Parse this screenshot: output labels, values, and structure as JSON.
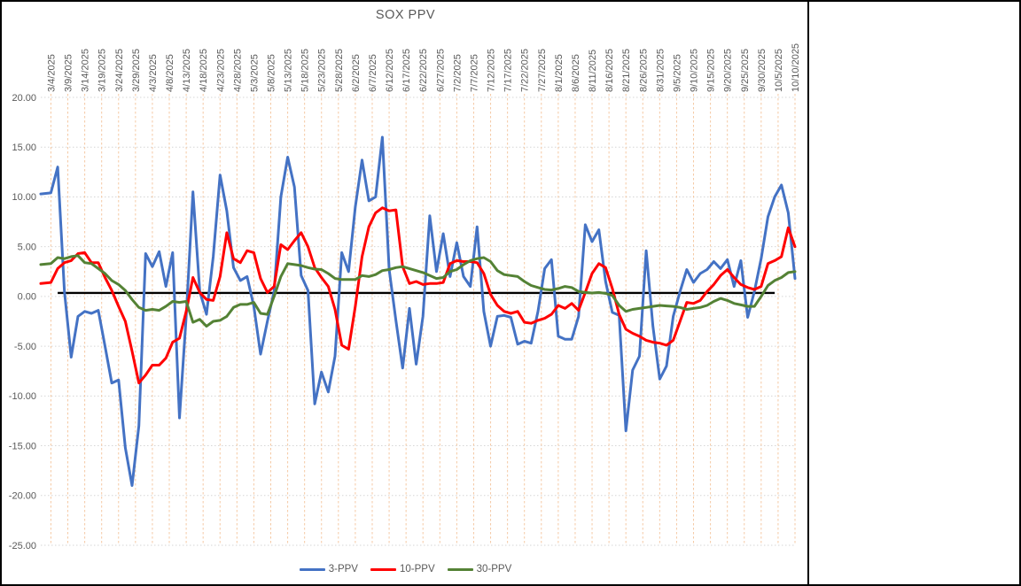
{
  "title": "SOX PPV",
  "colors": {
    "series_blue": "#4472C4",
    "series_red": "#FF0000",
    "series_green": "#548235",
    "vertical_grid": "#F5C9A4",
    "horizontal_grid": "#D6D6D6",
    "axis_text": "#595959",
    "reference_line": "#000000",
    "frame_border": "#000000"
  },
  "y_axis": {
    "labels": [
      "20.00",
      "15.00",
      "10.00",
      "5.00",
      "0.00",
      "-5.00",
      "-10.00",
      "-15.00",
      "-20.00",
      "-25.00"
    ],
    "max": 20,
    "min": -25,
    "step": 5
  },
  "x_axis": {
    "labels": [
      "3/4/2025",
      "3/9/2025",
      "3/14/2025",
      "3/19/2025",
      "3/24/2025",
      "3/29/2025",
      "4/3/2025",
      "4/8/2025",
      "4/13/2025",
      "4/18/2025",
      "4/23/2025",
      "4/28/2025",
      "5/3/2025",
      "5/8/2025",
      "5/13/2025",
      "5/18/2025",
      "5/23/2025",
      "5/28/2025",
      "6/2/2025",
      "6/7/2025",
      "6/12/2025",
      "6/17/2025",
      "6/22/2025",
      "6/27/2025",
      "7/2/2025",
      "7/7/2025",
      "7/12/2025",
      "7/17/2025",
      "7/22/2025",
      "7/27/2025",
      "8/1/2025",
      "8/6/2025",
      "8/11/2025",
      "8/16/2025",
      "8/21/2025",
      "8/26/2025",
      "8/31/2025",
      "9/5/2025",
      "9/10/2025",
      "9/15/2025",
      "9/20/2025",
      "9/25/2025",
      "9/30/2025",
      "10/5/2025",
      "10/10/2025"
    ]
  },
  "legend": [
    {
      "label": "3-PPV",
      "color": "#4472C4"
    },
    {
      "label": "10-PPV",
      "color": "#FF0000"
    },
    {
      "label": "30-PPV",
      "color": "#548235"
    }
  ],
  "chart_data": {
    "type": "line",
    "title": "SOX PPV",
    "xlabel": "",
    "ylabel": "",
    "ylim": [
      -25,
      20
    ],
    "grid": true,
    "legend_position": "bottom",
    "x_start_date": "3/4/2025",
    "x_end_date": "10/10/2025",
    "x_step_days": 2,
    "reference_line": {
      "value": 0.35,
      "from": "3/6/2025",
      "to": "10/4/2025"
    },
    "series": [
      {
        "name": "3-PPV",
        "color": "#4472C4",
        "start_value": 10.3,
        "values": [
          10.4,
          13.0,
          0.5,
          -6.1,
          -2.0,
          -1.5,
          -1.7,
          -1.4,
          -5.0,
          -8.7,
          -8.4,
          -15.2,
          -19.0,
          -13.0,
          4.3,
          3.0,
          4.5,
          1.0,
          4.4,
          -12.2,
          -2.0,
          10.5,
          0.5,
          -1.8,
          4.0,
          12.2,
          8.6,
          2.9,
          1.6,
          2.0,
          -1.0,
          -5.8,
          -2.5,
          0.5,
          10.0,
          14.0,
          11.0,
          2.1,
          0.6,
          -10.8,
          -7.6,
          -9.6,
          -6.0,
          4.4,
          2.5,
          9.0,
          13.7,
          9.6,
          10.0,
          16.0,
          2.7,
          -2.4,
          -7.2,
          -1.2,
          -6.8,
          -2.0,
          8.1,
          2.5,
          6.3,
          2.0,
          5.4,
          2.0,
          1.0,
          7.0,
          -1.5,
          -5.0,
          -2.0,
          -1.9,
          -2.1,
          -4.8,
          -4.5,
          -4.7,
          -1.5,
          2.8,
          3.7,
          -4.0,
          -4.3,
          -4.3,
          -2.0,
          7.2,
          5.5,
          6.7,
          1.5,
          -1.6,
          -1.9,
          -13.5,
          -7.4,
          -6.0,
          4.6,
          -3.0,
          -8.3,
          -7.0,
          -2.0,
          0.5,
          2.7,
          1.4,
          2.3,
          2.7,
          3.5,
          2.8,
          3.7,
          1.0,
          3.6,
          -2.1,
          0.5,
          3.8,
          8.0,
          10.0,
          11.2,
          8.4,
          1.8
        ]
      },
      {
        "name": "10-PPV",
        "color": "#FF0000",
        "start_value": 1.3,
        "values": [
          1.4,
          2.8,
          3.4,
          3.6,
          4.3,
          4.4,
          3.4,
          3.4,
          1.9,
          0.6,
          -1.0,
          -2.5,
          -5.5,
          -8.7,
          -7.9,
          -6.9,
          -6.9,
          -6.2,
          -4.6,
          -4.2,
          -1.5,
          1.9,
          0.4,
          -0.3,
          -0.4,
          2.0,
          6.4,
          3.8,
          3.4,
          4.6,
          4.4,
          1.8,
          0.4,
          1.0,
          5.2,
          4.7,
          5.6,
          6.4,
          5.0,
          2.9,
          1.9,
          1.0,
          -1.3,
          -4.9,
          -5.3,
          -1.0,
          4.0,
          7.0,
          8.4,
          8.9,
          8.6,
          8.7,
          3.0,
          1.3,
          1.5,
          1.2,
          1.3,
          1.3,
          1.4,
          3.3,
          3.6,
          3.5,
          3.5,
          3.4,
          2.3,
          0.2,
          -0.9,
          -1.5,
          -1.7,
          -1.5,
          -2.6,
          -2.7,
          -2.4,
          -2.2,
          -1.8,
          -0.9,
          -1.2,
          -0.7,
          -1.4,
          0.4,
          2.3,
          3.3,
          2.9,
          0.8,
          -1.8,
          -3.3,
          -3.7,
          -4.0,
          -4.4,
          -4.6,
          -4.7,
          -4.9,
          -4.4,
          -2.5,
          -0.6,
          -0.7,
          -0.4,
          0.5,
          1.2,
          2.1,
          2.7,
          1.9,
          1.2,
          0.9,
          0.7,
          1.0,
          3.3,
          3.6,
          4.0,
          6.9,
          5.0
        ]
      },
      {
        "name": "30-PPV",
        "color": "#548235",
        "start_value": 3.2,
        "values": [
          3.3,
          3.9,
          3.8,
          4.0,
          4.1,
          3.4,
          3.3,
          2.8,
          2.3,
          1.6,
          1.2,
          0.6,
          -0.3,
          -1.1,
          -1.4,
          -1.3,
          -1.4,
          -1.0,
          -0.5,
          -0.6,
          -0.5,
          -2.6,
          -2.3,
          -3.0,
          -2.5,
          -2.4,
          -2.0,
          -1.1,
          -0.8,
          -0.8,
          -0.6,
          -1.7,
          -1.8,
          0.0,
          2.0,
          3.3,
          3.2,
          3.1,
          2.9,
          2.75,
          2.7,
          2.3,
          1.8,
          1.7,
          1.7,
          1.7,
          2.1,
          2.0,
          2.2,
          2.6,
          2.7,
          2.9,
          3.0,
          2.8,
          2.6,
          2.4,
          2.1,
          1.8,
          1.9,
          2.5,
          2.7,
          3.2,
          3.6,
          3.8,
          3.9,
          3.5,
          2.6,
          2.2,
          2.1,
          2.0,
          1.5,
          1.1,
          0.9,
          0.7,
          0.65,
          0.8,
          1.0,
          0.9,
          0.5,
          0.4,
          0.35,
          0.4,
          0.3,
          0.1,
          -0.9,
          -1.5,
          -1.3,
          -1.2,
          -1.1,
          -1.0,
          -0.9,
          -0.95,
          -1.0,
          -1.1,
          -1.3,
          -1.2,
          -1.1,
          -0.9,
          -0.5,
          -0.2,
          -0.4,
          -0.7,
          -0.85,
          -1.0,
          -1.0,
          0.0,
          1.1,
          1.6,
          1.9,
          2.4,
          2.5
        ]
      }
    ]
  }
}
